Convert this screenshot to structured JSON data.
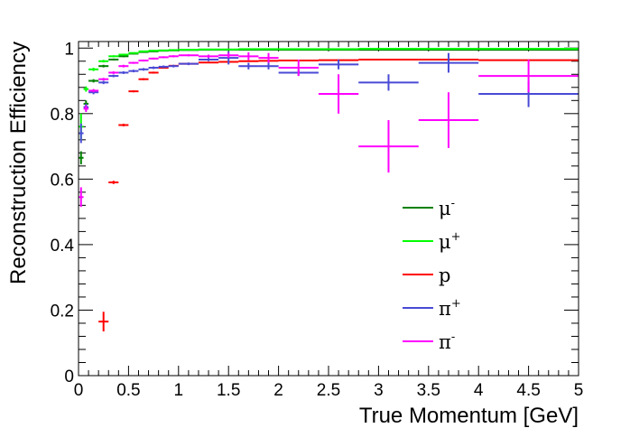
{
  "chart_data": {
    "type": "scatter",
    "title": "",
    "xlabel": "True Momentum [GeV]",
    "ylabel": "Reconstruction Efficiency",
    "xlim": [
      0,
      5
    ],
    "ylim": [
      0,
      1.02
    ],
    "xticks": [
      "0",
      "0.5",
      "1",
      "1.5",
      "2",
      "2.5",
      "3",
      "3.5",
      "4",
      "4.5",
      "5"
    ],
    "yticks": [
      "0",
      "0.2",
      "0.4",
      "0.6",
      "0.8",
      "1"
    ],
    "grid": false,
    "legend_position": "center-right",
    "series": [
      {
        "name": "μ⁻",
        "legend_base": "μ",
        "legend_sup": "-",
        "color": "#008000",
        "points": [
          [
            0.025,
            0.025,
            0.665,
            0.02
          ],
          [
            0.075,
            0.025,
            0.83,
            0.01
          ],
          [
            0.15,
            0.05,
            0.9,
            0.005
          ],
          [
            0.25,
            0.05,
            0.945,
            0.004
          ],
          [
            0.35,
            0.05,
            0.965,
            0.003
          ],
          [
            0.45,
            0.05,
            0.975,
            0.003
          ],
          [
            0.55,
            0.05,
            0.983,
            0.002
          ],
          [
            0.65,
            0.05,
            0.988,
            0.002
          ],
          [
            0.75,
            0.05,
            0.99,
            0.002
          ],
          [
            0.85,
            0.05,
            0.992,
            0.002
          ],
          [
            0.95,
            0.05,
            0.993,
            0.002
          ],
          [
            1.1,
            0.1,
            0.994,
            0.001
          ],
          [
            1.3,
            0.1,
            0.995,
            0.001
          ],
          [
            1.5,
            0.1,
            0.995,
            0.001
          ],
          [
            1.7,
            0.1,
            0.995,
            0.001
          ],
          [
            1.9,
            0.1,
            0.995,
            0.001
          ],
          [
            2.2,
            0.2,
            0.995,
            0.001
          ],
          [
            2.6,
            0.2,
            0.995,
            0.001
          ],
          [
            3.1,
            0.3,
            0.995,
            0.001
          ],
          [
            3.7,
            0.3,
            0.995,
            0.001
          ],
          [
            4.5,
            0.5,
            0.995,
            0.001
          ]
        ]
      },
      {
        "name": "μ⁺",
        "legend_base": "μ",
        "legend_sup": "+",
        "color": "#00ff00",
        "points": [
          [
            0.025,
            0.025,
            0.76,
            0.04
          ],
          [
            0.075,
            0.025,
            0.875,
            0.008
          ],
          [
            0.15,
            0.05,
            0.935,
            0.005
          ],
          [
            0.25,
            0.05,
            0.96,
            0.004
          ],
          [
            0.35,
            0.05,
            0.975,
            0.003
          ],
          [
            0.45,
            0.05,
            0.98,
            0.003
          ],
          [
            0.55,
            0.05,
            0.985,
            0.002
          ],
          [
            0.65,
            0.05,
            0.99,
            0.002
          ],
          [
            0.75,
            0.05,
            0.992,
            0.002
          ],
          [
            0.85,
            0.05,
            0.993,
            0.002
          ],
          [
            0.95,
            0.05,
            0.994,
            0.002
          ],
          [
            1.1,
            0.1,
            0.995,
            0.001
          ],
          [
            1.3,
            0.1,
            0.996,
            0.001
          ],
          [
            1.5,
            0.1,
            0.996,
            0.001
          ],
          [
            1.7,
            0.1,
            0.997,
            0.001
          ],
          [
            1.9,
            0.1,
            0.997,
            0.001
          ],
          [
            2.2,
            0.2,
            0.997,
            0.001
          ],
          [
            2.6,
            0.2,
            0.997,
            0.001
          ],
          [
            3.1,
            0.3,
            0.998,
            0.001
          ],
          [
            3.7,
            0.3,
            0.998,
            0.001
          ],
          [
            4.5,
            0.5,
            0.998,
            0.001
          ]
        ]
      },
      {
        "name": "p",
        "legend_base": "p",
        "legend_sup": "",
        "color": "#ff0000",
        "points": [
          [
            0.25,
            0.05,
            0.165,
            0.03
          ],
          [
            0.35,
            0.05,
            0.59,
            0.005
          ],
          [
            0.45,
            0.05,
            0.765,
            0.004
          ],
          [
            0.55,
            0.05,
            0.868,
            0.003
          ],
          [
            0.65,
            0.05,
            0.905,
            0.003
          ],
          [
            0.75,
            0.05,
            0.925,
            0.003
          ],
          [
            0.85,
            0.05,
            0.94,
            0.003
          ],
          [
            0.95,
            0.05,
            0.946,
            0.002
          ],
          [
            1.1,
            0.1,
            0.952,
            0.002
          ],
          [
            1.3,
            0.1,
            0.956,
            0.002
          ],
          [
            1.5,
            0.1,
            0.958,
            0.002
          ],
          [
            1.7,
            0.1,
            0.96,
            0.002
          ],
          [
            1.9,
            0.1,
            0.961,
            0.002
          ],
          [
            2.2,
            0.2,
            0.962,
            0.002
          ],
          [
            2.6,
            0.2,
            0.963,
            0.002
          ],
          [
            3.1,
            0.3,
            0.965,
            0.002
          ],
          [
            3.7,
            0.3,
            0.965,
            0.002
          ],
          [
            4.5,
            0.5,
            0.963,
            0.002
          ]
        ]
      },
      {
        "name": "π⁺",
        "legend_base": "π",
        "legend_sup": "+",
        "color": "#4a4ad6",
        "points": [
          [
            0.025,
            0.025,
            0.74,
            0.03
          ],
          [
            0.075,
            0.025,
            0.82,
            0.01
          ],
          [
            0.15,
            0.05,
            0.865,
            0.006
          ],
          [
            0.25,
            0.05,
            0.895,
            0.005
          ],
          [
            0.35,
            0.05,
            0.915,
            0.004
          ],
          [
            0.45,
            0.05,
            0.925,
            0.004
          ],
          [
            0.55,
            0.05,
            0.93,
            0.004
          ],
          [
            0.65,
            0.05,
            0.935,
            0.004
          ],
          [
            0.75,
            0.05,
            0.94,
            0.004
          ],
          [
            0.85,
            0.05,
            0.943,
            0.004
          ],
          [
            0.95,
            0.05,
            0.945,
            0.004
          ],
          [
            1.1,
            0.1,
            0.952,
            0.004
          ],
          [
            1.3,
            0.1,
            0.965,
            0.005
          ],
          [
            1.5,
            0.1,
            0.97,
            0.02
          ],
          [
            1.7,
            0.1,
            0.945,
            0.01
          ],
          [
            1.9,
            0.1,
            0.945,
            0.01
          ],
          [
            2.2,
            0.2,
            0.925,
            0.01
          ],
          [
            2.6,
            0.2,
            0.95,
            0.015
          ],
          [
            3.1,
            0.3,
            0.895,
            0.025
          ],
          [
            3.7,
            0.3,
            0.955,
            0.03
          ],
          [
            4.5,
            0.5,
            0.86,
            0.04
          ]
        ]
      },
      {
        "name": "π⁻",
        "legend_base": "π",
        "legend_sup": "-",
        "color": "#ff00ff",
        "points": [
          [
            0.025,
            0.025,
            0.545,
            0.03
          ],
          [
            0.075,
            0.025,
            0.815,
            0.01
          ],
          [
            0.15,
            0.05,
            0.87,
            0.005
          ],
          [
            0.25,
            0.05,
            0.905,
            0.004
          ],
          [
            0.35,
            0.05,
            0.925,
            0.004
          ],
          [
            0.45,
            0.05,
            0.945,
            0.004
          ],
          [
            0.55,
            0.05,
            0.955,
            0.003
          ],
          [
            0.65,
            0.05,
            0.962,
            0.003
          ],
          [
            0.75,
            0.05,
            0.968,
            0.003
          ],
          [
            0.85,
            0.05,
            0.972,
            0.003
          ],
          [
            0.95,
            0.05,
            0.975,
            0.003
          ],
          [
            1.1,
            0.1,
            0.978,
            0.003
          ],
          [
            1.3,
            0.1,
            0.975,
            0.005
          ],
          [
            1.5,
            0.1,
            0.978,
            0.008
          ],
          [
            1.7,
            0.1,
            0.975,
            0.012
          ],
          [
            1.9,
            0.1,
            0.97,
            0.015
          ],
          [
            2.2,
            0.2,
            0.94,
            0.025
          ],
          [
            2.6,
            0.2,
            0.86,
            0.06
          ],
          [
            3.1,
            0.3,
            0.7,
            0.08
          ],
          [
            3.7,
            0.3,
            0.78,
            0.085
          ],
          [
            4.5,
            0.5,
            0.915,
            0.05
          ]
        ]
      }
    ]
  }
}
